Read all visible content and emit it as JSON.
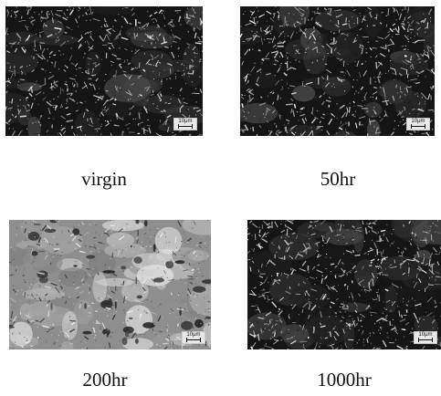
{
  "panels": [
    {
      "caption": "virgin",
      "scale_label": "10μm",
      "tone": "dark"
    },
    {
      "caption": "50hr",
      "scale_label": "10μm",
      "tone": "dark"
    },
    {
      "caption": "200hr",
      "scale_label": "10μm",
      "tone": "light"
    },
    {
      "caption": "1000hr",
      "scale_label": "10μm",
      "tone": "dark"
    }
  ]
}
